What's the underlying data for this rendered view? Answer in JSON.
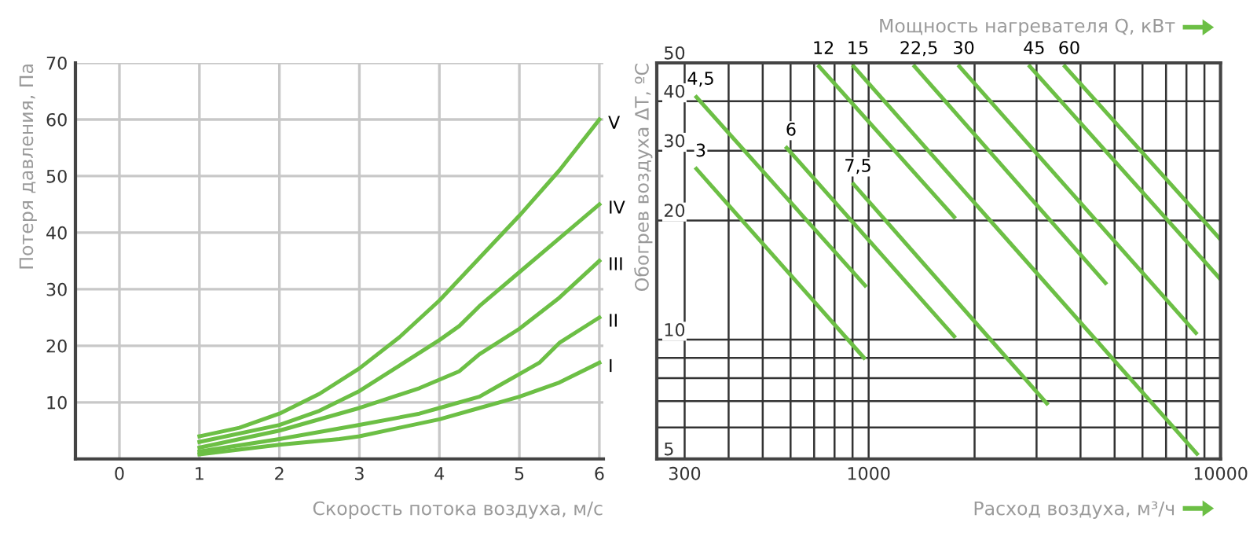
{
  "chart_data": [
    {
      "type": "line",
      "xlabel": "Скорость потока воздуха, м/с",
      "ylabel": "Потеря давления, Па",
      "xlim": [
        -0.55,
        6.05
      ],
      "ylim": [
        0,
        70
      ],
      "xticks": [
        0,
        1,
        2,
        3,
        4,
        5,
        6
      ],
      "yticks": [
        10,
        20,
        30,
        40,
        50,
        60,
        70
      ],
      "grid": true,
      "legend": false,
      "marker": "none",
      "line_style": "solid",
      "series": [
        {
          "name": "V",
          "color": "#6cbf45",
          "x": [
            1,
            1.5,
            2,
            2.5,
            3,
            3.5,
            4,
            4.5,
            5,
            5.5,
            6
          ],
          "values": [
            4,
            5.5,
            8,
            11.5,
            16,
            21.5,
            28,
            35.5,
            43,
            51,
            60
          ]
        },
        {
          "name": "IV",
          "color": "#6cbf45",
          "x": [
            1,
            2,
            2.5,
            3,
            3.5,
            4,
            4.25,
            4.5,
            5,
            5.5,
            6
          ],
          "values": [
            3,
            6,
            8.5,
            12,
            16.5,
            21,
            23.5,
            27,
            33,
            39,
            45
          ]
        },
        {
          "name": "III",
          "color": "#6cbf45",
          "x": [
            1,
            2,
            3,
            3.75,
            4,
            4.25,
            4.5,
            5,
            5.5,
            6
          ],
          "values": [
            2,
            5,
            9,
            12.5,
            14,
            15.5,
            18.5,
            23,
            28.5,
            35
          ]
        },
        {
          "name": "II",
          "color": "#6cbf45",
          "x": [
            1,
            2,
            3,
            3.75,
            4,
            4.5,
            4.75,
            5,
            5.25,
            5.5,
            6
          ],
          "values": [
            1.3,
            3.5,
            6,
            8,
            9,
            11,
            13,
            15,
            17,
            20.5,
            25
          ]
        },
        {
          "name": "I",
          "color": "#6cbf45",
          "x": [
            1,
            2,
            2.75,
            3,
            3.5,
            4,
            4.5,
            4.75,
            5,
            5.5,
            6
          ],
          "values": [
            0.8,
            2.5,
            3.5,
            4,
            5.5,
            7,
            9,
            10,
            11,
            13.5,
            17
          ]
        }
      ]
    },
    {
      "type": "line",
      "xlabel": "Расход воздуха, м³/ч",
      "ylabel": "Обогрев воздуха ΔT, ºC",
      "annotations": [
        "Мощность нагревателя Q, кВт"
      ],
      "log": "xy",
      "xlim": [
        250,
        10000
      ],
      "ylim": [
        5,
        50
      ],
      "xticks": [
        300,
        {
          "value": 400,
          "label": null
        },
        {
          "value": 500,
          "label": null
        },
        {
          "value": 600,
          "label": null
        },
        {
          "value": 700,
          "label": null
        },
        {
          "value": 800,
          "label": null
        },
        {
          "value": 900,
          "label": null
        },
        1000,
        {
          "value": 2000,
          "label": null
        },
        {
          "value": 3000,
          "label": null
        },
        {
          "value": 4000,
          "label": null
        },
        {
          "value": 5000,
          "label": null
        },
        {
          "value": 6000,
          "label": null
        },
        {
          "value": 7000,
          "label": null
        },
        {
          "value": 8000,
          "label": null
        },
        {
          "value": 9000,
          "label": null
        },
        10000
      ],
      "yticks": [
        5,
        {
          "value": 6,
          "label": null
        },
        {
          "value": 7,
          "label": null
        },
        {
          "value": 8,
          "label": null
        },
        {
          "value": 9,
          "label": null
        },
        10,
        20,
        30,
        40,
        50
      ],
      "grid": true,
      "legend": false,
      "marker": "none",
      "line_style": "solid",
      "series": [
        {
          "name": "3",
          "color": "#6cbf45",
          "x": [
            324,
            970
          ],
          "values": [
            27,
            9
          ]
        },
        {
          "name": "4,5",
          "color": "#6cbf45",
          "x": [
            324,
            977
          ],
          "values": [
            41,
            13.7
          ]
        },
        {
          "name": "6",
          "color": "#6cbf45",
          "x": [
            585,
            1750
          ],
          "values": [
            30.5,
            10.2
          ]
        },
        {
          "name": "7,5",
          "color": "#6cbf45",
          "x": [
            906,
            3210
          ],
          "values": [
            24.7,
            6.9
          ]
        },
        {
          "name": "12",
          "color": "#6cbf45",
          "x": [
            723,
            1750
          ],
          "values": [
            49,
            20.4
          ]
        },
        {
          "name": "15",
          "color": "#6cbf45",
          "x": [
            906,
            8570
          ],
          "values": [
            49,
            5.15
          ]
        },
        {
          "name": "22,5",
          "color": "#6cbf45",
          "x": [
            1350,
            4710
          ],
          "values": [
            49,
            13.9
          ]
        },
        {
          "name": "30",
          "color": "#6cbf45",
          "x": [
            1810,
            8510
          ],
          "values": [
            49,
            10.4
          ]
        },
        {
          "name": "45",
          "color": "#6cbf45",
          "x": [
            2870,
            10000
          ],
          "values": [
            49,
            14.2
          ]
        },
        {
          "name": "60",
          "color": "#6cbf45",
          "x": [
            3610,
            10000
          ],
          "values": [
            49,
            17.9
          ]
        }
      ]
    }
  ]
}
